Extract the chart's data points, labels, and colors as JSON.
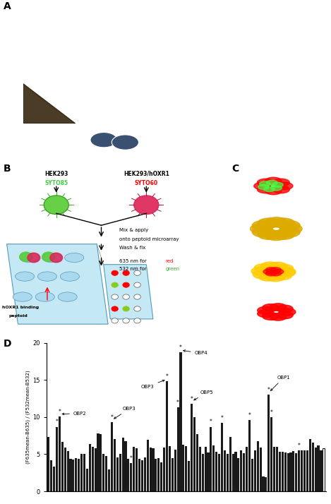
{
  "panel_D_ylabel": "(F635mean-B635) / (F532mean-B532)",
  "ylim": [
    0,
    20
  ],
  "yticks": [
    0,
    5,
    10,
    15,
    20
  ],
  "bar_color": "#1a1a1a",
  "mean_bar_color": "white",
  "mean_bar_edgecolor": "#1a1a1a",
  "values": [
    7.3,
    4.2,
    3.3,
    8.7,
    10.1,
    6.7,
    5.9,
    5.4,
    4.4,
    4.3,
    4.5,
    4.4,
    5.0,
    5.0,
    3.1,
    6.4,
    6.0,
    5.8,
    7.8,
    7.7,
    5.0,
    4.8,
    3.0,
    9.3,
    7.0,
    4.6,
    5.0,
    7.2,
    6.8,
    4.4,
    3.8,
    6.0,
    5.8,
    4.4,
    4.2,
    4.6,
    6.9,
    5.9,
    5.8,
    4.4,
    4.5,
    3.9,
    5.9,
    14.8,
    6.1,
    4.5,
    5.6,
    11.3,
    18.7,
    6.3,
    6.1,
    4.1,
    11.8,
    10.0,
    7.7,
    6.0,
    5.0,
    6.0,
    5.2,
    8.7,
    6.2,
    5.3,
    5.0,
    9.2,
    5.5,
    5.0,
    7.3,
    5.0,
    5.3,
    4.5,
    5.5,
    5.1,
    6.0,
    9.6,
    4.4,
    5.5,
    6.8,
    5.9,
    2.0,
    1.9,
    13.0,
    10.0,
    6.0,
    6.0,
    5.3,
    5.3,
    5.2,
    5.1,
    5.2,
    5.4,
    5.1,
    5.5,
    5.5,
    5.5,
    5.5,
    7.0,
    6.6,
    5.9,
    6.2,
    5.5
  ],
  "mean_value": 5.8,
  "asterisk_indices": [
    3,
    4,
    23,
    30,
    43,
    47,
    48,
    52,
    59,
    63,
    73,
    80,
    81,
    91
  ],
  "panel_A_bg_color": "#8bbfe0",
  "panel_A_small1_color": "#7ab0d8",
  "panel_A_small2_color": "#060a14",
  "panel_A_small3_color": "#7ab0d8",
  "panel_B_bg": "white",
  "panel_C_bg": "black",
  "background_color": "white"
}
